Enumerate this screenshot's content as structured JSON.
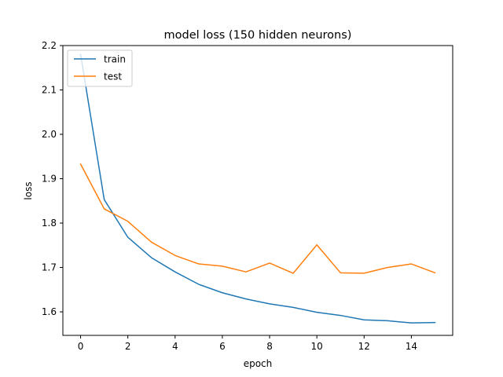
{
  "chart_data": {
    "type": "line",
    "title": "model loss (150 hidden neurons)",
    "xlabel": "epoch",
    "ylabel": "loss",
    "xlim": [
      -0.75,
      15.75
    ],
    "ylim": [
      1.547,
      2.2
    ],
    "xticks": [
      0,
      2,
      4,
      6,
      8,
      10,
      12,
      14
    ],
    "yticks": [
      1.6,
      1.7,
      1.8,
      1.9,
      2.0,
      2.1,
      2.2
    ],
    "x": [
      0,
      1,
      2,
      3,
      4,
      5,
      6,
      7,
      8,
      9,
      10,
      11,
      12,
      13,
      14,
      15
    ],
    "series": [
      {
        "name": "train",
        "color": "#1f77b4",
        "values": [
          2.18,
          1.853,
          1.768,
          1.722,
          1.69,
          1.662,
          1.643,
          1.629,
          1.618,
          1.61,
          1.599,
          1.592,
          1.582,
          1.58,
          1.575,
          1.576
        ]
      },
      {
        "name": "test",
        "color": "#ff7f0e",
        "values": [
          1.933,
          1.832,
          1.804,
          1.757,
          1.727,
          1.708,
          1.703,
          1.69,
          1.71,
          1.687,
          1.751,
          1.688,
          1.687,
          1.7,
          1.708,
          1.688
        ]
      }
    ],
    "legend": "upper-left",
    "grid": false
  }
}
